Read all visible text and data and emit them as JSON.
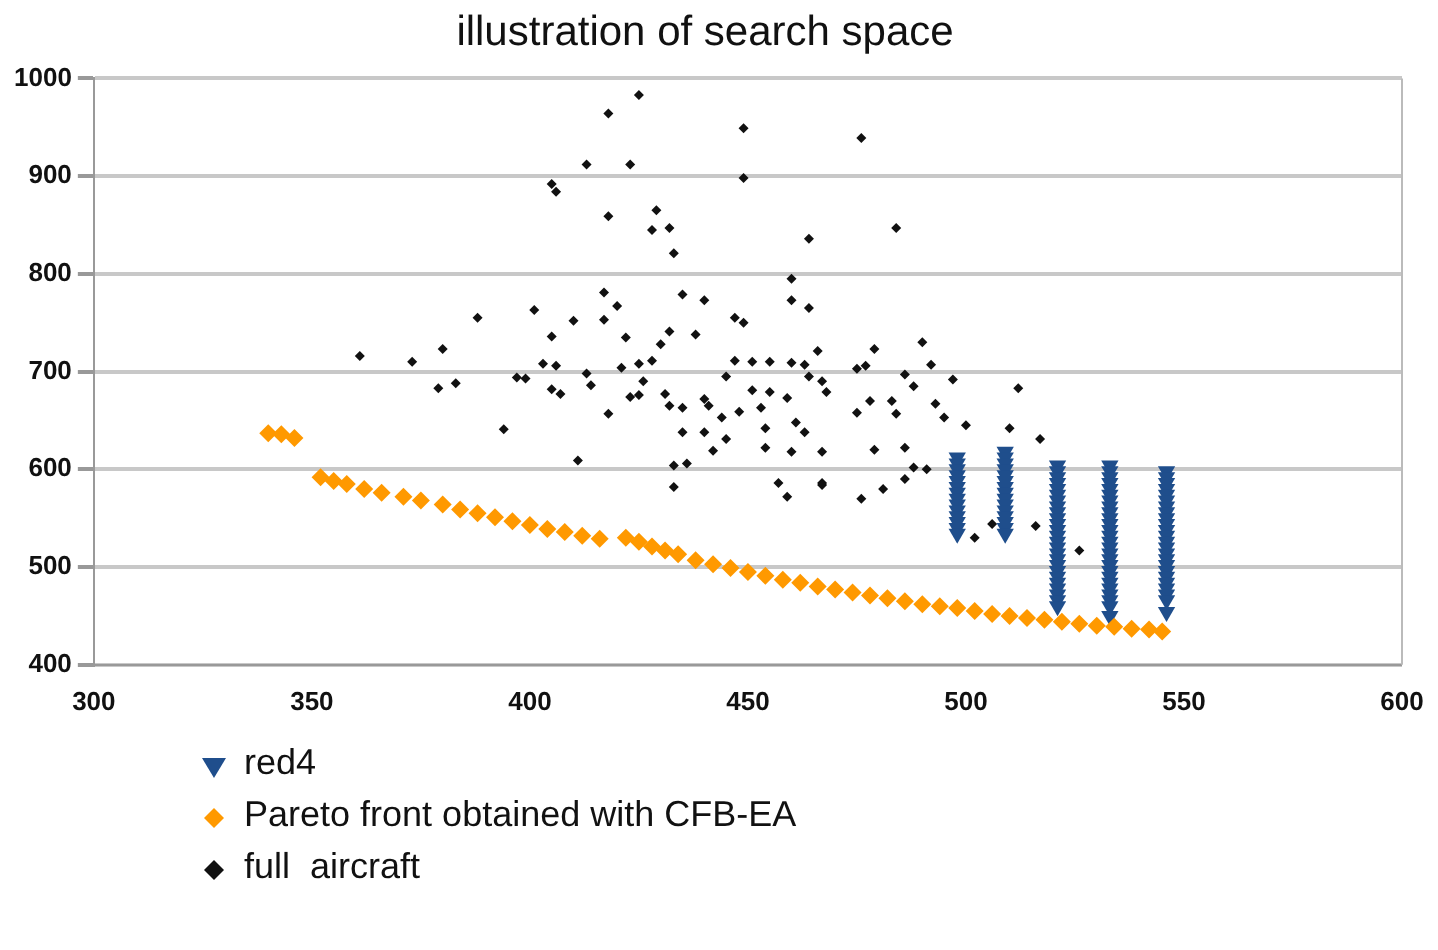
{
  "chart_data": {
    "type": "scatter",
    "title": "illustration of search space",
    "xlim": [
      300,
      600
    ],
    "xticks": [
      300,
      350,
      400,
      450,
      500,
      550,
      600
    ],
    "ylim": [
      400,
      1000
    ],
    "yticks": [
      400,
      500,
      600,
      700,
      800,
      900,
      1000
    ],
    "grid": "y",
    "legend": "bottom",
    "series": [
      {
        "name": "red4",
        "color": "#1f4e8c",
        "marker": "triangle",
        "x": [
          498,
          498,
          498,
          498,
          498,
          498,
          498,
          498,
          498,
          498,
          498,
          498,
          498,
          498,
          509,
          509,
          509,
          509,
          509,
          509,
          509,
          509,
          509,
          509,
          509,
          509,
          509,
          509,
          509,
          521,
          521,
          521,
          521,
          521,
          521,
          521,
          521,
          521,
          521,
          521,
          521,
          521,
          521,
          521,
          521,
          521,
          521,
          521,
          521,
          521,
          521,
          521,
          521,
          521,
          533,
          533,
          533,
          533,
          533,
          533,
          533,
          533,
          533,
          533,
          533,
          533,
          533,
          533,
          533,
          533,
          533,
          533,
          533,
          533,
          533,
          533,
          533,
          533,
          533,
          533,
          546,
          546,
          546,
          546,
          546,
          546,
          546,
          546,
          546,
          546,
          546,
          546,
          546,
          546,
          546,
          546,
          546,
          546,
          546,
          546,
          546,
          546,
          546,
          546
        ],
        "values": [
          612,
          606,
          600,
          594,
          588,
          582,
          576,
          570,
          564,
          558,
          552,
          546,
          540,
          534,
          618,
          612,
          606,
          600,
          594,
          588,
          582,
          576,
          570,
          564,
          558,
          552,
          546,
          540,
          534,
          604,
          598,
          592,
          586,
          580,
          574,
          568,
          562,
          556,
          550,
          544,
          538,
          532,
          526,
          520,
          514,
          508,
          502,
          496,
          490,
          484,
          478,
          472,
          466,
          460,
          604,
          598,
          592,
          586,
          580,
          574,
          568,
          562,
          556,
          550,
          544,
          538,
          532,
          526,
          520,
          514,
          508,
          502,
          496,
          490,
          484,
          478,
          472,
          466,
          460,
          450,
          598,
          592,
          586,
          580,
          574,
          568,
          562,
          556,
          550,
          544,
          538,
          532,
          526,
          520,
          514,
          508,
          502,
          496,
          490,
          484,
          478,
          472,
          466,
          454
        ]
      },
      {
        "name": "Pareto front obtained with CFB-EA",
        "color": "#ff9900",
        "marker": "diamond",
        "x": [
          340,
          343,
          346,
          352,
          355,
          358,
          362,
          366,
          371,
          375,
          380,
          384,
          388,
          392,
          396,
          400,
          404,
          408,
          412,
          416,
          422,
          425,
          428,
          431,
          434,
          438,
          442,
          446,
          450,
          454,
          458,
          462,
          466,
          470,
          474,
          478,
          482,
          486,
          490,
          494,
          498,
          502,
          506,
          510,
          514,
          518,
          522,
          526,
          530,
          534,
          538,
          542,
          545
        ],
        "values": [
          637,
          636,
          632,
          592,
          588,
          585,
          580,
          576,
          572,
          568,
          564,
          559,
          555,
          551,
          547,
          543,
          539,
          536,
          532,
          529,
          530,
          526,
          521,
          517,
          513,
          507,
          503,
          499,
          495,
          491,
          487,
          484,
          480,
          477,
          474,
          471,
          468,
          465,
          462,
          460,
          458,
          455,
          452,
          450,
          448,
          446,
          444,
          442,
          440,
          439,
          437,
          436,
          434
        ]
      },
      {
        "name": "full  aircraft",
        "color": "#111111",
        "marker": "diamond",
        "x": [
          425,
          418,
          449,
          476,
          413,
          423,
          449,
          405,
          406,
          418,
          429,
          428,
          432,
          433,
          464,
          484,
          460,
          460,
          464,
          388,
          435,
          440,
          417,
          420,
          401,
          410,
          417,
          447,
          449,
          361,
          380,
          373,
          379,
          383,
          405,
          422,
          432,
          430,
          428,
          403,
          406,
          397,
          399,
          413,
          414,
          421,
          425,
          426,
          405,
          407,
          394,
          418,
          423,
          425,
          431,
          432,
          435,
          440,
          441,
          438,
          447,
          451,
          455,
          460,
          463,
          466,
          445,
          451,
          455,
          459,
          464,
          467,
          468,
          444,
          448,
          453,
          445,
          435,
          440,
          442,
          454,
          454,
          461,
          463,
          467,
          460,
          411,
          433,
          436,
          433,
          457,
          459,
          467,
          475,
          479,
          477,
          475,
          478,
          479,
          483,
          484,
          486,
          490,
          492,
          488,
          493,
          497,
          495,
          500,
          510,
          512,
          486,
          488,
          486,
          491,
          481,
          476,
          506,
          516,
          526,
          502,
          517,
          467
        ],
        "values": [
          983,
          964,
          949,
          939,
          912,
          912,
          898,
          892,
          884,
          859,
          865,
          845,
          847,
          821,
          836,
          847,
          795,
          773,
          765,
          755,
          779,
          773,
          781,
          767,
          763,
          752,
          753,
          755,
          750,
          716,
          723,
          710,
          683,
          688,
          736,
          735,
          741,
          728,
          711,
          708,
          706,
          694,
          693,
          698,
          686,
          704,
          708,
          690,
          682,
          677,
          641,
          657,
          674,
          676,
          677,
          665,
          663,
          672,
          665,
          738,
          711,
          710,
          710,
          709,
          707,
          721,
          695,
          681,
          679,
          673,
          695,
          690,
          679,
          653,
          659,
          663,
          631,
          638,
          638,
          619,
          642,
          622,
          648,
          638,
          618,
          618,
          609,
          604,
          606,
          582,
          586,
          572,
          586,
          703,
          723,
          706,
          658,
          670,
          620,
          670,
          657,
          697,
          730,
          707,
          685,
          667,
          692,
          653,
          645,
          642,
          683,
          622,
          602,
          590,
          600,
          580,
          570,
          544,
          542,
          517,
          530,
          631,
          584
        ]
      }
    ]
  }
}
